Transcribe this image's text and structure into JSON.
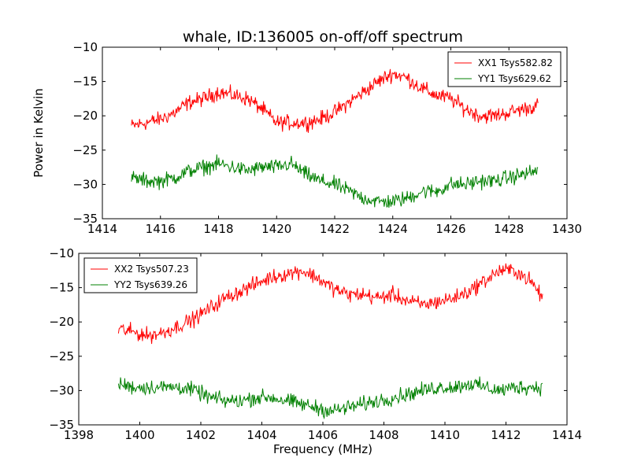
{
  "page": {
    "title": "whale, ID:136005 on-off/off spectrum"
  },
  "chart_data": [
    {
      "type": "line",
      "title": "whale, ID:136005 on-off/off spectrum",
      "xlabel": "",
      "ylabel": "Power in Kelvin",
      "xlim": [
        1414,
        1430
      ],
      "ylim": [
        -35,
        -10
      ],
      "xticks": [
        "1414",
        "1416",
        "1418",
        "1420",
        "1422",
        "1424",
        "1426",
        "1428",
        "1430"
      ],
      "yticks": [
        "−10",
        "−15",
        "−20",
        "−25",
        "−30",
        "−35"
      ],
      "legend_position": "top-right",
      "grid": false,
      "series": [
        {
          "name": "XX1 Tsys582.82",
          "color": "#ff0000",
          "x": [
            1415,
            1415.5,
            1416,
            1416.5,
            1417,
            1417.5,
            1418,
            1418.5,
            1419,
            1419.5,
            1420,
            1420.5,
            1421,
            1421.5,
            1422,
            1422.5,
            1423,
            1423.5,
            1424,
            1424.5,
            1425,
            1425.5,
            1426,
            1426.5,
            1427,
            1427.5,
            1428,
            1428.5,
            1429
          ],
          "y": [
            -21.5,
            -21,
            -20.5,
            -19.5,
            -18,
            -17.5,
            -16.5,
            -17,
            -17.5,
            -19,
            -21,
            -21,
            -21,
            -20.5,
            -19.5,
            -18,
            -16.5,
            -15,
            -13.8,
            -14.5,
            -16,
            -17,
            -17.5,
            -19,
            -20,
            -20,
            -19.5,
            -19,
            -18.5
          ]
        },
        {
          "name": "YY1 Tsys629.62",
          "color": "#008000",
          "x": [
            1415,
            1415.5,
            1416,
            1416.5,
            1417,
            1417.5,
            1418,
            1418.5,
            1419,
            1419.5,
            1420,
            1420.5,
            1421,
            1421.5,
            1422,
            1422.5,
            1423,
            1423.5,
            1424,
            1424.5,
            1425,
            1425.5,
            1426,
            1426.5,
            1427,
            1427.5,
            1428,
            1428.5,
            1429
          ],
          "y": [
            -29,
            -29.5,
            -29.5,
            -29,
            -28,
            -27.5,
            -27,
            -27.5,
            -28,
            -27.5,
            -27.5,
            -27,
            -28.5,
            -29.5,
            -30,
            -31,
            -32,
            -32.5,
            -32.5,
            -32,
            -31,
            -31,
            -30,
            -30,
            -29.5,
            -29.5,
            -29,
            -28.5,
            -28
          ]
        }
      ]
    },
    {
      "type": "line",
      "title": "",
      "xlabel": "Frequency (MHz)",
      "ylabel": "",
      "xlim": [
        1398,
        1414
      ],
      "ylim": [
        -35,
        -10
      ],
      "xticks": [
        "1398",
        "1400",
        "1402",
        "1404",
        "1406",
        "1408",
        "1410",
        "1412",
        "1414"
      ],
      "yticks": [
        "−10",
        "−15",
        "−20",
        "−25",
        "−30",
        "−35"
      ],
      "legend_position": "top-left",
      "grid": false,
      "series": [
        {
          "name": "XX2 Tsys507.23",
          "color": "#ff0000",
          "x": [
            1399.3,
            1399.8,
            1400.3,
            1400.8,
            1401.3,
            1401.8,
            1402.3,
            1402.8,
            1403.3,
            1403.8,
            1404.3,
            1404.8,
            1405.3,
            1405.8,
            1406.3,
            1406.8,
            1407.3,
            1407.8,
            1408.3,
            1408.8,
            1409.3,
            1409.8,
            1410.3,
            1410.8,
            1411.3,
            1411.8,
            1412.3,
            1412.8,
            1413.2
          ],
          "y": [
            -21,
            -21.5,
            -22,
            -21.5,
            -20.5,
            -19.5,
            -18,
            -16.5,
            -15.5,
            -14.5,
            -13.5,
            -13,
            -12.5,
            -13.5,
            -15,
            -16,
            -16,
            -16.5,
            -16,
            -17,
            -17.5,
            -17,
            -16.5,
            -15.5,
            -14,
            -12.5,
            -12.5,
            -14,
            -16.5
          ]
        },
        {
          "name": "YY2 Tsys639.26",
          "color": "#008000",
          "x": [
            1399.3,
            1399.8,
            1400.3,
            1400.8,
            1401.3,
            1401.8,
            1402.3,
            1402.8,
            1403.3,
            1403.8,
            1404.3,
            1404.8,
            1405.3,
            1405.8,
            1406.3,
            1406.8,
            1407.3,
            1407.8,
            1408.3,
            1408.8,
            1409.3,
            1409.8,
            1410.3,
            1410.8,
            1411.3,
            1411.8,
            1412.3,
            1412.8,
            1413.2
          ],
          "y": [
            -29,
            -29.5,
            -29.5,
            -29.5,
            -29.5,
            -30,
            -31,
            -31.5,
            -31.5,
            -31,
            -31,
            -31.5,
            -32,
            -32.5,
            -33,
            -32.5,
            -32,
            -31.5,
            -31,
            -30.5,
            -30,
            -29.5,
            -29.5,
            -29,
            -29.5,
            -30,
            -29.5,
            -29.5,
            -29.5
          ]
        }
      ]
    }
  ]
}
